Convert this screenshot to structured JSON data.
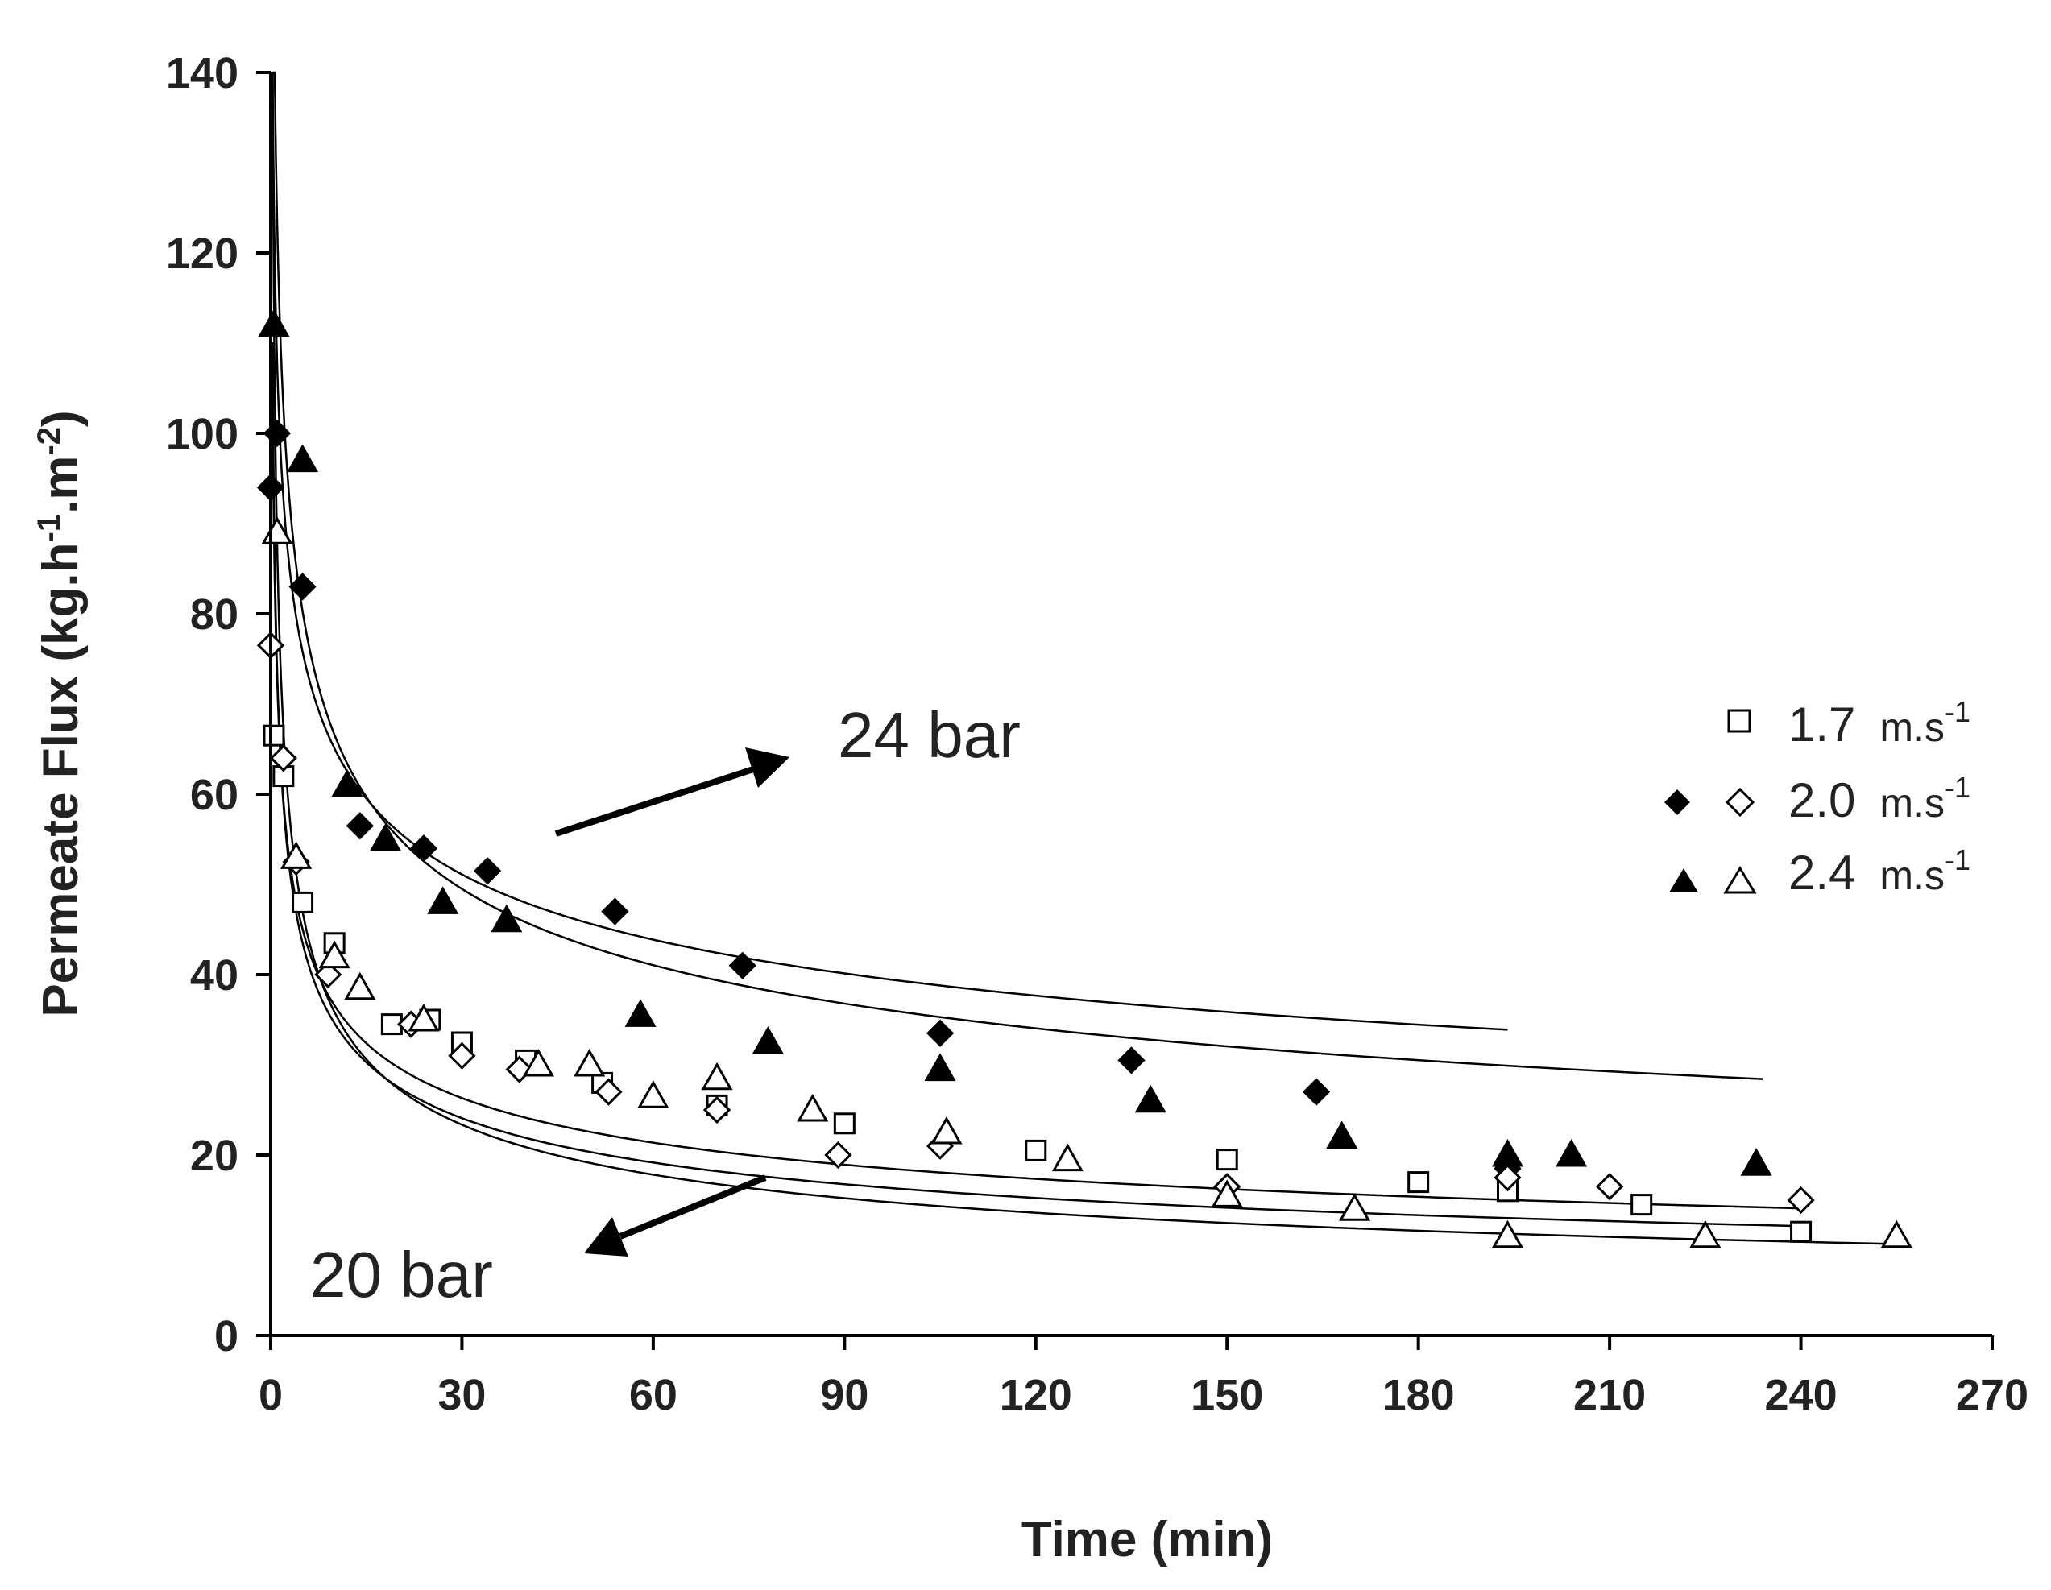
{
  "chart_data": {
    "type": "scatter",
    "title": "",
    "xlabel": "Time (min)",
    "ylabel_main": "Permeate Flux (kg.h",
    "ylabel_sup1": "-1",
    "ylabel_mid": ".m",
    "ylabel_sup2": "-2",
    "ylabel_end": ")",
    "xlim": [
      0,
      270
    ],
    "ylim": [
      0,
      140
    ],
    "xticks": [
      0,
      30,
      60,
      90,
      120,
      150,
      180,
      210,
      240,
      270
    ],
    "yticks": [
      0,
      20,
      40,
      60,
      80,
      100,
      120,
      140
    ],
    "annotations": {
      "high": "24 bar",
      "low": "20 bar"
    },
    "legend": {
      "position": "right",
      "entries": [
        {
          "label": "1.7",
          "unit": "m.s",
          "sup": "-1"
        },
        {
          "label": "2.0",
          "unit": "m.s",
          "sup": "-1"
        },
        {
          "label": "2.4",
          "unit": "m.s",
          "sup": "-1"
        }
      ]
    },
    "series": [
      {
        "name": "24 bar, 2.0 m.s-1",
        "marker": "diamond-filled",
        "x": [
          0,
          1,
          5,
          14,
          24,
          34,
          54,
          74,
          105,
          135,
          164,
          194
        ],
        "y": [
          94,
          100,
          83,
          56.5,
          54,
          51.5,
          47,
          41,
          33.5,
          30.5,
          27,
          18.5
        ]
      },
      {
        "name": "24 bar, 2.4 m.s-1",
        "marker": "triangle-filled",
        "x": [
          0.5,
          5,
          12,
          18,
          27,
          37,
          58,
          78,
          105,
          138,
          168,
          194,
          204,
          233
        ],
        "y": [
          112,
          97,
          61,
          55,
          48,
          46,
          35.5,
          32.5,
          29.5,
          26,
          22,
          20,
          20,
          19
        ]
      },
      {
        "name": "20 bar, 1.7 m.s-1",
        "marker": "square-open",
        "x": [
          0.5,
          2,
          5,
          10,
          19,
          25,
          30,
          40,
          52,
          70,
          90,
          120,
          150,
          180,
          194,
          215,
          240
        ],
        "y": [
          66.5,
          62,
          48,
          43.5,
          34.5,
          35,
          32.5,
          30.5,
          28,
          25.5,
          23.5,
          20.5,
          19.5,
          17,
          16,
          14.5,
          11.5
        ]
      },
      {
        "name": "20 bar, 2.0 m.s-1",
        "marker": "diamond-open",
        "x": [
          0,
          2,
          4,
          9,
          22,
          30,
          39,
          53,
          70,
          89,
          105,
          150,
          194,
          210,
          240
        ],
        "y": [
          76.5,
          64,
          52.5,
          40,
          34.5,
          31,
          29.5,
          27,
          25,
          20,
          21,
          16.5,
          17.5,
          16.5,
          15
        ]
      },
      {
        "name": "20 bar, 2.4 m.s-1",
        "marker": "triangle-open",
        "x": [
          1,
          4,
          10,
          14,
          24,
          42,
          50,
          60,
          70,
          85,
          106,
          125,
          150,
          170,
          194,
          225,
          255
        ],
        "y": [
          89,
          53,
          42,
          38.5,
          35,
          30,
          30,
          26.5,
          28.5,
          25,
          22.5,
          19.5,
          15.5,
          14,
          11,
          11,
          11
        ]
      }
    ],
    "fits": [
      {
        "name": "fit 24 bar 2.0",
        "a": 108,
        "b": 0.22,
        "x0": 0.3,
        "x1": 194
      },
      {
        "name": "fit 24 bar 2.4",
        "a": 124,
        "b": 0.27,
        "x0": 0.3,
        "x1": 234
      },
      {
        "name": "fit 20 bar 1.7",
        "a": 74,
        "b": 0.33,
        "x0": 0.3,
        "x1": 240
      },
      {
        "name": "fit 20 bar 2.0",
        "a": 73,
        "b": 0.3,
        "x0": 0.3,
        "x1": 240
      },
      {
        "name": "fit 20 bar 2.4",
        "a": 88,
        "b": 0.39,
        "x0": 0.3,
        "x1": 256
      }
    ]
  }
}
